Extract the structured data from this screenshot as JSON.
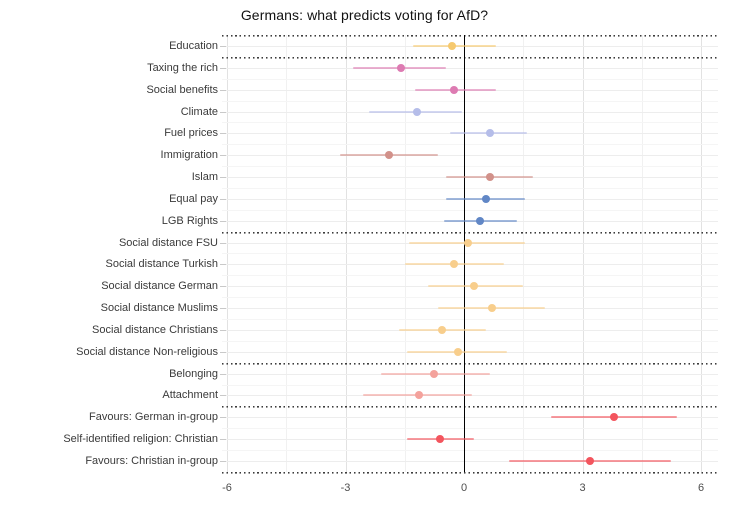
{
  "chart_data": {
    "type": "scatter",
    "variant": "coefficient-dot-whisker-plot",
    "title": "Germans: what predicts voting for AfD?",
    "xlabel": "",
    "ylabel": "",
    "x_ticks": [
      -6,
      -3,
      0,
      3,
      6
    ],
    "xlim": [
      -6.15,
      6.4
    ],
    "zero_reference_line": true,
    "grid": "on",
    "legend_position": "none",
    "section_separator_style": "dotted",
    "groups": [
      {
        "name": "education",
        "rows": [
          {
            "label": "Education",
            "estimate": -0.3,
            "ci_low": -1.3,
            "ci_high": 0.8,
            "color": "#f6c96e"
          }
        ]
      },
      {
        "name": "policy-attitudes",
        "rows": [
          {
            "label": "Taxing the rich",
            "estimate": -1.6,
            "ci_low": -2.8,
            "ci_high": -0.45,
            "color": "#dd7bb2"
          },
          {
            "label": "Social benefits",
            "estimate": -0.25,
            "ci_low": -1.25,
            "ci_high": 0.8,
            "color": "#dd7bb2"
          },
          {
            "label": "Climate",
            "estimate": -1.2,
            "ci_low": -2.4,
            "ci_high": -0.05,
            "color": "#b5bde9"
          },
          {
            "label": "Fuel prices",
            "estimate": 0.65,
            "ci_low": -0.35,
            "ci_high": 1.6,
            "color": "#b5bde9"
          },
          {
            "label": "Immigration",
            "estimate": -1.9,
            "ci_low": -3.15,
            "ci_high": -0.65,
            "color": "#d2918a"
          },
          {
            "label": "Islam",
            "estimate": 0.65,
            "ci_low": -0.45,
            "ci_high": 1.75,
            "color": "#d2918a"
          },
          {
            "label": "Equal pay",
            "estimate": 0.55,
            "ci_low": -0.45,
            "ci_high": 1.55,
            "color": "#6187c6"
          },
          {
            "label": "LGB Rights",
            "estimate": 0.4,
            "ci_low": -0.5,
            "ci_high": 1.35,
            "color": "#6187c6"
          }
        ]
      },
      {
        "name": "social-distance",
        "rows": [
          {
            "label": "Social distance FSU",
            "estimate": 0.1,
            "ci_low": -1.4,
            "ci_high": 1.55,
            "color": "#f8ce8c"
          },
          {
            "label": "Social distance Turkish",
            "estimate": -0.25,
            "ci_low": -1.5,
            "ci_high": 1.0,
            "color": "#f8ce8c"
          },
          {
            "label": "Social distance German",
            "estimate": 0.25,
            "ci_low": -0.9,
            "ci_high": 1.5,
            "color": "#f8ce8c"
          },
          {
            "label": "Social distance Muslims",
            "estimate": 0.7,
            "ci_low": -0.65,
            "ci_high": 2.05,
            "color": "#f8ce8c"
          },
          {
            "label": "Social distance Christians",
            "estimate": -0.55,
            "ci_low": -1.65,
            "ci_high": 0.55,
            "color": "#f8ce8c"
          },
          {
            "label": "Social distance Non-religious",
            "estimate": -0.15,
            "ci_low": -1.45,
            "ci_high": 1.1,
            "color": "#f8ce8c"
          }
        ]
      },
      {
        "name": "national-identity",
        "rows": [
          {
            "label": "Belonging",
            "estimate": -0.75,
            "ci_low": -2.1,
            "ci_high": 0.65,
            "color": "#f4a29c"
          },
          {
            "label": "Attachment",
            "estimate": -1.15,
            "ci_low": -2.55,
            "ci_high": 0.2,
            "color": "#f4a29c"
          }
        ]
      },
      {
        "name": "religion-and-ingroup",
        "rows": [
          {
            "label": "Favours: German in-group",
            "estimate": 3.8,
            "ci_low": 2.2,
            "ci_high": 5.4,
            "color": "#f3555e"
          },
          {
            "label": "Self-identified religion: Christian",
            "estimate": -0.6,
            "ci_low": -1.45,
            "ci_high": 0.25,
            "color": "#f3555e"
          },
          {
            "label": "Favours: Christian in-group",
            "estimate": 3.2,
            "ci_low": 1.15,
            "ci_high": 5.25,
            "color": "#f3555e"
          }
        ]
      }
    ]
  }
}
